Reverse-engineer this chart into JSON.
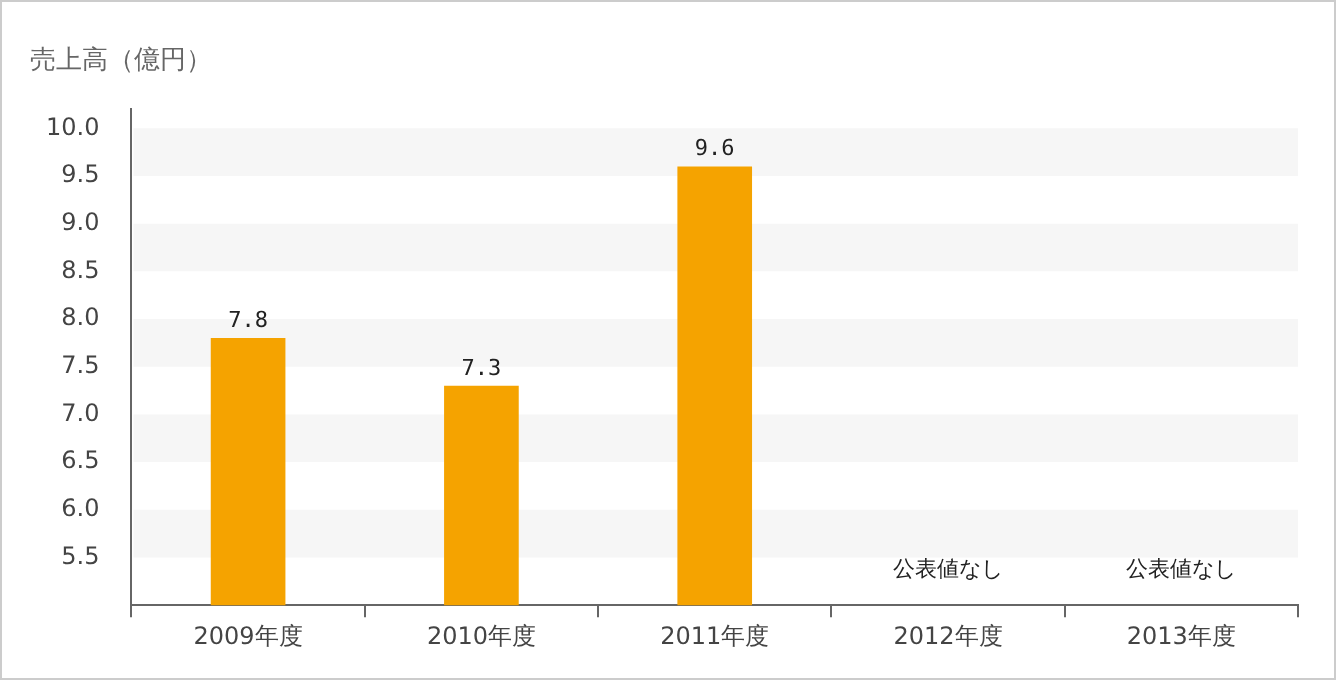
{
  "chart_data": {
    "type": "bar",
    "title": "売上高（億円）",
    "categories": [
      "2009年度",
      "2010年度",
      "2011年度",
      "2012年度",
      "2013年度"
    ],
    "values": [
      7.8,
      7.3,
      9.6,
      null,
      null
    ],
    "color": "#f5a300",
    "ylim": [
      5,
      10.2
    ],
    "yticks": [
      {
        "value": 5.5,
        "label": "5.5"
      },
      {
        "value": 6,
        "label": "6.0"
      },
      {
        "value": 6.5,
        "label": "6.5"
      },
      {
        "value": 7,
        "label": "7.0"
      },
      {
        "value": 7.5,
        "label": "7.5"
      },
      {
        "value": 8,
        "label": "8.0"
      },
      {
        "value": 8.5,
        "label": "8.5"
      },
      {
        "value": 9,
        "label": "9.0"
      },
      {
        "value": 9.5,
        "label": "9.5"
      },
      {
        "value": 10,
        "label": "10.0"
      }
    ],
    "data_labels": true,
    "annotations": [
      "公表値なし",
      "公表値なし"
    ]
  }
}
